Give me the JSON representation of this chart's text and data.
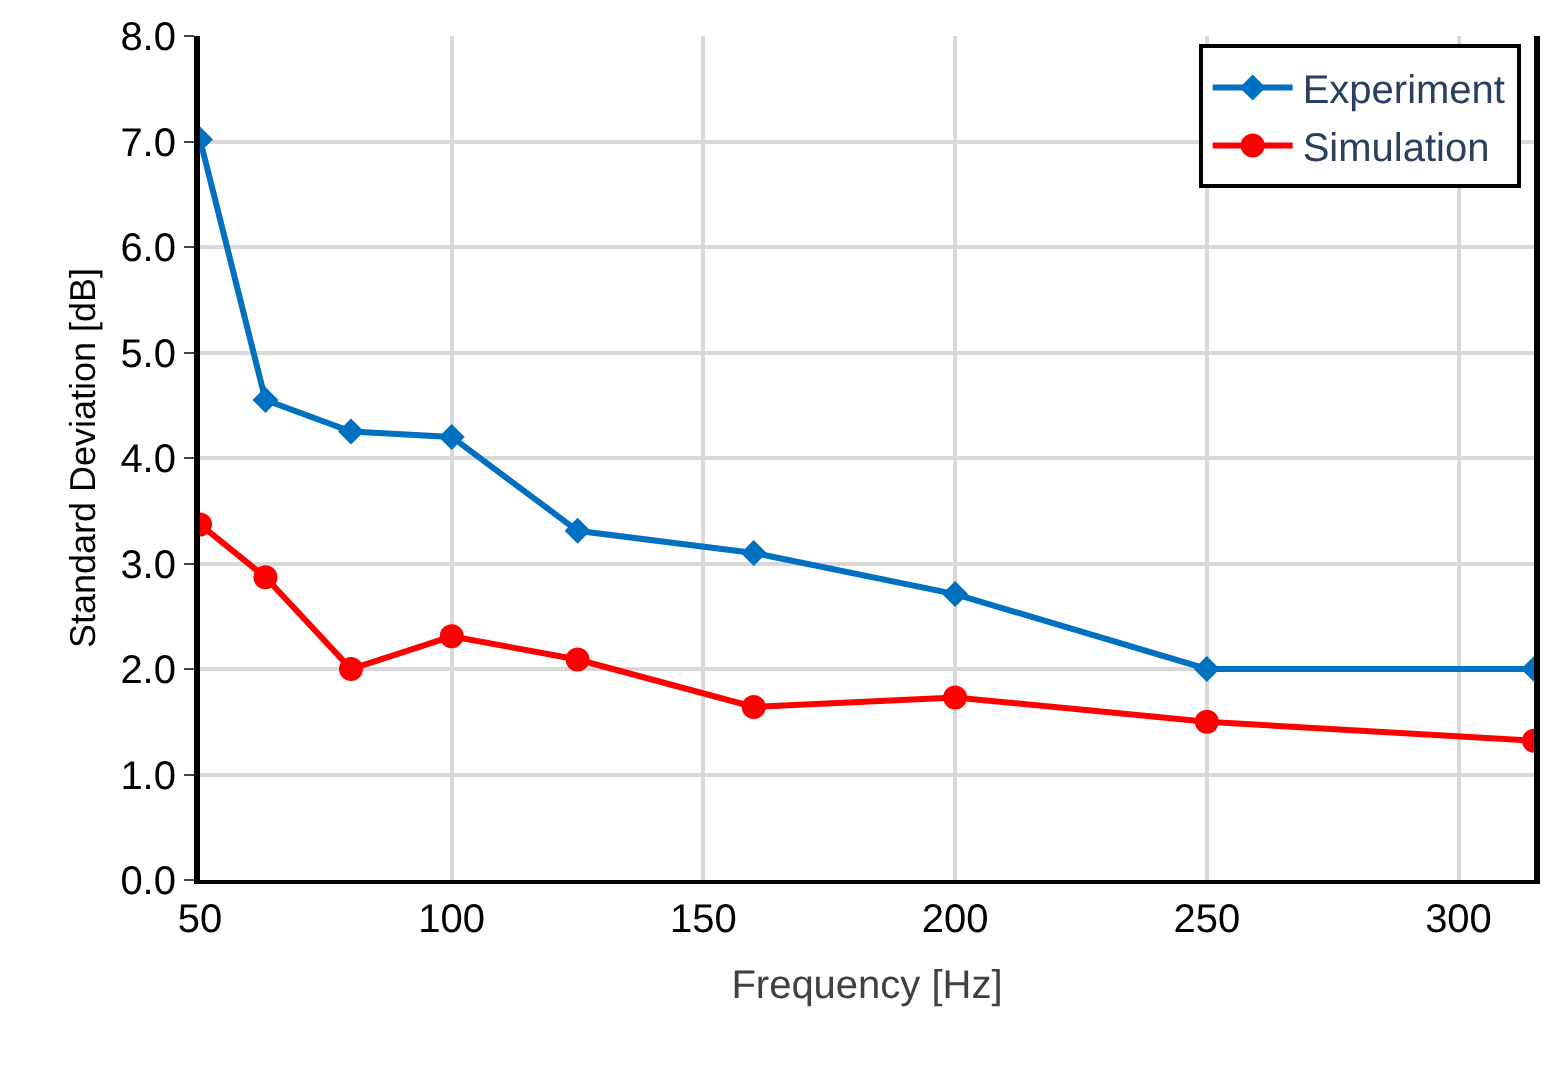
{
  "chart_data": {
    "type": "line",
    "xlabel": "Frequency [Hz]",
    "ylabel": "Standard Deviation [dB]",
    "xlim": [
      50,
      315
    ],
    "xticks": [
      50,
      100,
      150,
      200,
      250,
      300
    ],
    "ylim": [
      0,
      8
    ],
    "yticks": [
      {
        "value": 0,
        "label": "0.0"
      },
      {
        "value": 1,
        "label": "1.0"
      },
      {
        "value": 2,
        "label": "2.0"
      },
      {
        "value": 3,
        "label": "3.0"
      },
      {
        "value": 4,
        "label": "4.0"
      },
      {
        "value": 5,
        "label": "5.0"
      },
      {
        "value": 6,
        "label": "6.0"
      },
      {
        "value": 7,
        "label": "7.0"
      },
      {
        "value": 8,
        "label": "8.0"
      }
    ],
    "grid": true,
    "legend": "top right",
    "line_style": "solid",
    "series": [
      {
        "name": "Experiment",
        "color": "#0070c0",
        "marker": "diamond",
        "x": [
          50,
          63,
          80,
          100,
          125,
          160,
          200,
          250,
          315
        ],
        "values": [
          7.02,
          4.55,
          4.25,
          4.2,
          3.31,
          3.1,
          2.71,
          2.0,
          2.0
        ]
      },
      {
        "name": "Simulation",
        "color": "#ff0000",
        "marker": "circle",
        "x": [
          50,
          63,
          80,
          100,
          125,
          160,
          200,
          250,
          315
        ],
        "values": [
          3.37,
          2.87,
          2.0,
          2.31,
          2.09,
          1.64,
          1.73,
          1.5,
          1.32
        ]
      }
    ]
  }
}
